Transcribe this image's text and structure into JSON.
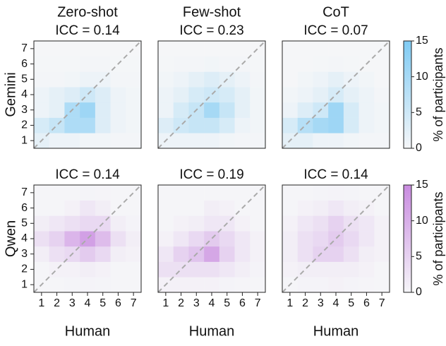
{
  "chart_data": [
    {
      "type": "heatmap",
      "title": "Zero-shot",
      "subtitle": "ICC = 0.14",
      "ylabel": "Gemini",
      "xlim": [
        0.5,
        7.5
      ],
      "ylim": [
        0.5,
        7.5
      ],
      "yticks": [
        1,
        2,
        3,
        4,
        5,
        6,
        7
      ],
      "clim": [
        0,
        15
      ],
      "colormap": [
        "#f5f6f8",
        "#7fcbf4"
      ],
      "values": [
        [
          2,
          1,
          1,
          0.5,
          0.5,
          0.3,
          0.2
        ],
        [
          4,
          6,
          9,
          9,
          3,
          1,
          0.5
        ],
        [
          1,
          2,
          9,
          11,
          3,
          1,
          0.5
        ],
        [
          1,
          2,
          3,
          5,
          3,
          1,
          0.5
        ],
        [
          0.3,
          0.3,
          0.5,
          1,
          1,
          0.3,
          0.2
        ],
        [
          0.1,
          0.1,
          0.1,
          0.2,
          0.2,
          0.1,
          0.1
        ],
        [
          0,
          0,
          0,
          0,
          0,
          0,
          0
        ]
      ]
    },
    {
      "type": "heatmap",
      "title": "Few-shot",
      "subtitle": "ICC = 0.23",
      "xlim": [
        0.5,
        7.5
      ],
      "ylim": [
        0.5,
        7.5
      ],
      "clim": [
        0,
        15
      ],
      "colormap": [
        "#f5f6f8",
        "#7fcbf4"
      ],
      "values": [
        [
          1,
          1,
          1,
          1,
          0.5,
          0.3,
          0.2
        ],
        [
          3,
          5,
          6,
          6,
          4,
          1,
          0.5
        ],
        [
          1,
          4,
          6,
          10,
          6,
          2,
          0.5
        ],
        [
          1,
          2,
          4,
          5,
          4,
          2,
          0.5
        ],
        [
          0.5,
          1,
          2,
          3,
          2,
          1,
          0.3
        ],
        [
          0.1,
          0.2,
          0.3,
          0.5,
          0.3,
          0.2,
          0.1
        ],
        [
          0,
          0,
          0,
          0,
          0,
          0,
          0
        ]
      ]
    },
    {
      "type": "heatmap",
      "title": "CoT",
      "subtitle": "ICC = 0.07",
      "xlim": [
        0.5,
        7.5
      ],
      "ylim": [
        0.5,
        7.5
      ],
      "clim": [
        0,
        15
      ],
      "colormap": [
        "#f5f6f8",
        "#7fcbf4"
      ],
      "colorbar": {
        "label": "% of participants",
        "ticks": [
          0,
          5,
          10,
          15
        ]
      },
      "values": [
        [
          2,
          2,
          1,
          1,
          0.5,
          0.3,
          0.2
        ],
        [
          4,
          8,
          10,
          11,
          4,
          1,
          0.5
        ],
        [
          1,
          3,
          5,
          11,
          4,
          1,
          0.5
        ],
        [
          0.5,
          1,
          2,
          4,
          2,
          1,
          0.3
        ],
        [
          0,
          0.5,
          1,
          2,
          1,
          0.5,
          0
        ],
        [
          0,
          0,
          0.1,
          0.2,
          0.1,
          0,
          0
        ],
        [
          0,
          0,
          0,
          0,
          0,
          0,
          0
        ]
      ]
    },
    {
      "type": "heatmap",
      "subtitle": "ICC = 0.14",
      "ylabel": "Qwen",
      "xlabel": "Human",
      "xlim": [
        0.5,
        7.5
      ],
      "ylim": [
        0.5,
        7.5
      ],
      "xticks": [
        1,
        2,
        3,
        4,
        5,
        6,
        7
      ],
      "yticks": [
        1,
        2,
        3,
        4,
        5,
        6,
        7
      ],
      "clim": [
        0,
        15
      ],
      "colormap": [
        "#f5f5f8",
        "#c98be0"
      ],
      "values": [
        [
          0,
          0,
          0.2,
          0.3,
          0.2,
          0,
          0
        ],
        [
          0,
          0.5,
          0.5,
          1,
          0.5,
          0,
          0
        ],
        [
          1,
          3,
          4,
          6,
          4,
          1,
          0.5
        ],
        [
          3,
          5,
          9,
          12,
          8,
          3,
          1
        ],
        [
          1,
          2,
          3,
          4,
          4,
          1,
          0.3
        ],
        [
          0,
          0,
          0.5,
          2,
          1,
          0,
          0
        ],
        [
          0,
          0,
          0,
          0.2,
          0.1,
          0,
          0
        ]
      ]
    },
    {
      "type": "heatmap",
      "subtitle": "ICC = 0.19",
      "xlabel": "Human",
      "xlim": [
        0.5,
        7.5
      ],
      "ylim": [
        0.5,
        7.5
      ],
      "xticks": [
        1,
        2,
        3,
        4,
        5,
        6,
        7
      ],
      "clim": [
        0,
        15
      ],
      "colormap": [
        "#f5f5f8",
        "#c98be0"
      ],
      "values": [
        [
          0.5,
          0.5,
          0.5,
          0.5,
          0.3,
          0.1,
          0
        ],
        [
          3,
          3,
          3,
          3,
          2,
          1,
          0.3
        ],
        [
          2,
          5,
          7,
          11,
          5,
          2,
          0.5
        ],
        [
          0.5,
          2,
          4,
          6,
          4,
          2,
          0.5
        ],
        [
          0,
          0.5,
          1,
          2,
          2,
          0.5,
          0
        ],
        [
          0,
          0,
          0,
          1,
          0.5,
          0,
          0
        ],
        [
          0,
          0,
          0,
          0,
          0,
          0,
          0
        ]
      ]
    },
    {
      "type": "heatmap",
      "subtitle": "ICC = 0.14",
      "xlabel": "Human",
      "xlim": [
        0.5,
        7.5
      ],
      "ylim": [
        0.5,
        7.5
      ],
      "xticks": [
        1,
        2,
        3,
        4,
        5,
        6,
        7
      ],
      "clim": [
        0,
        15
      ],
      "colormap": [
        "#f5f5f8",
        "#c98be0"
      ],
      "colorbar": {
        "label": "% of participants",
        "ticks": [
          0,
          5,
          10,
          15
        ]
      },
      "values": [
        [
          0,
          0.3,
          0.3,
          0.5,
          0.3,
          0.1,
          0
        ],
        [
          0.5,
          1,
          1,
          1,
          1,
          0.5,
          0
        ],
        [
          1,
          3,
          5,
          5,
          3,
          1,
          0.5
        ],
        [
          1,
          3,
          4,
          6,
          4,
          2,
          0.5
        ],
        [
          0.5,
          2,
          3,
          5,
          3,
          2,
          0.5
        ],
        [
          0,
          0.5,
          1,
          2,
          1,
          0.5,
          0
        ],
        [
          0,
          0,
          0.2,
          0.3,
          0.2,
          0,
          0
        ]
      ]
    }
  ]
}
